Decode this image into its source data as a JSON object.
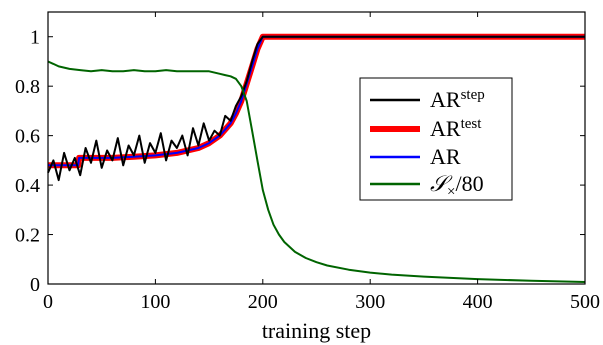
{
  "chart_data": {
    "type": "line",
    "title": "",
    "xlabel": "training step",
    "ylabel": "",
    "xlim": [
      0,
      500
    ],
    "ylim": [
      0,
      1.1
    ],
    "xticks": [
      0,
      100,
      200,
      300,
      400,
      500
    ],
    "yticks": [
      0,
      0.2,
      0.4,
      0.6,
      0.8,
      1
    ],
    "xtick_labels": [
      "0",
      "100",
      "200",
      "300",
      "400",
      "500"
    ],
    "ytick_labels": [
      "0",
      "0.2",
      "0.4",
      "0.6",
      "0.8",
      "1"
    ],
    "grid": false,
    "legend_position": "right",
    "legend": [
      {
        "main": "AR",
        "sup": "step",
        "color": "#000000"
      },
      {
        "main": "AR",
        "sup": "test",
        "color": "#ff0000"
      },
      {
        "main": "AR",
        "sup": "",
        "color": "#0000ff"
      },
      {
        "main": "𝒮",
        "sub": "×",
        "rest": "/80",
        "color": "#006400"
      }
    ],
    "series": [
      {
        "color": "#000000",
        "x": [
          0,
          5,
          10,
          15,
          20,
          25,
          30,
          35,
          40,
          45,
          50,
          55,
          60,
          65,
          70,
          75,
          80,
          85,
          90,
          95,
          100,
          105,
          110,
          115,
          120,
          125,
          130,
          135,
          140,
          145,
          150,
          155,
          160,
          165,
          170,
          175,
          180,
          185,
          190,
          195,
          200,
          220,
          250,
          300,
          350,
          400,
          450,
          500
        ],
        "y": [
          0.45,
          0.5,
          0.42,
          0.53,
          0.46,
          0.51,
          0.44,
          0.55,
          0.49,
          0.58,
          0.47,
          0.54,
          0.5,
          0.59,
          0.48,
          0.56,
          0.52,
          0.6,
          0.49,
          0.57,
          0.53,
          0.61,
          0.5,
          0.58,
          0.55,
          0.6,
          0.52,
          0.63,
          0.56,
          0.65,
          0.58,
          0.62,
          0.6,
          0.68,
          0.66,
          0.72,
          0.76,
          0.82,
          0.9,
          0.97,
          1.0,
          1.0,
          1.0,
          1.0,
          1.0,
          1.0,
          1.0,
          1.0
        ]
      },
      {
        "color": "#ff0000",
        "x": [
          0,
          28,
          29,
          40,
          60,
          80,
          100,
          120,
          140,
          150,
          160,
          170,
          175,
          180,
          185,
          190,
          195,
          200,
          210,
          250,
          300,
          350,
          400,
          450,
          500
        ],
        "y": [
          0.48,
          0.48,
          0.51,
          0.51,
          0.51,
          0.515,
          0.52,
          0.53,
          0.55,
          0.57,
          0.6,
          0.65,
          0.69,
          0.74,
          0.81,
          0.88,
          0.95,
          1.0,
          1.0,
          1.0,
          1.0,
          1.0,
          1.0,
          1.0,
          1.0
        ]
      },
      {
        "color": "#0000ff",
        "x": [
          0,
          28,
          29,
          40,
          60,
          80,
          100,
          120,
          140,
          150,
          160,
          170,
          175,
          180,
          185,
          190,
          195,
          200,
          210,
          250,
          300,
          350,
          400,
          450,
          500
        ],
        "y": [
          0.48,
          0.48,
          0.51,
          0.51,
          0.51,
          0.515,
          0.52,
          0.53,
          0.55,
          0.57,
          0.6,
          0.65,
          0.69,
          0.74,
          0.81,
          0.88,
          0.95,
          1.0,
          1.0,
          1.0,
          1.0,
          1.0,
          1.0,
          1.0,
          1.0
        ]
      },
      {
        "color": "#006400",
        "x": [
          0,
          5,
          10,
          15,
          20,
          30,
          40,
          50,
          60,
          70,
          80,
          90,
          100,
          110,
          120,
          130,
          140,
          150,
          160,
          165,
          170,
          175,
          180,
          185,
          190,
          195,
          200,
          205,
          210,
          215,
          220,
          230,
          240,
          250,
          260,
          280,
          300,
          320,
          350,
          400,
          450,
          500
        ],
        "y": [
          0.9,
          0.89,
          0.88,
          0.875,
          0.87,
          0.865,
          0.86,
          0.865,
          0.86,
          0.86,
          0.865,
          0.86,
          0.86,
          0.865,
          0.86,
          0.86,
          0.86,
          0.86,
          0.85,
          0.845,
          0.84,
          0.83,
          0.8,
          0.74,
          0.62,
          0.5,
          0.38,
          0.3,
          0.24,
          0.2,
          0.17,
          0.13,
          0.105,
          0.088,
          0.075,
          0.058,
          0.046,
          0.038,
          0.03,
          0.02,
          0.013,
          0.008
        ]
      }
    ]
  }
}
